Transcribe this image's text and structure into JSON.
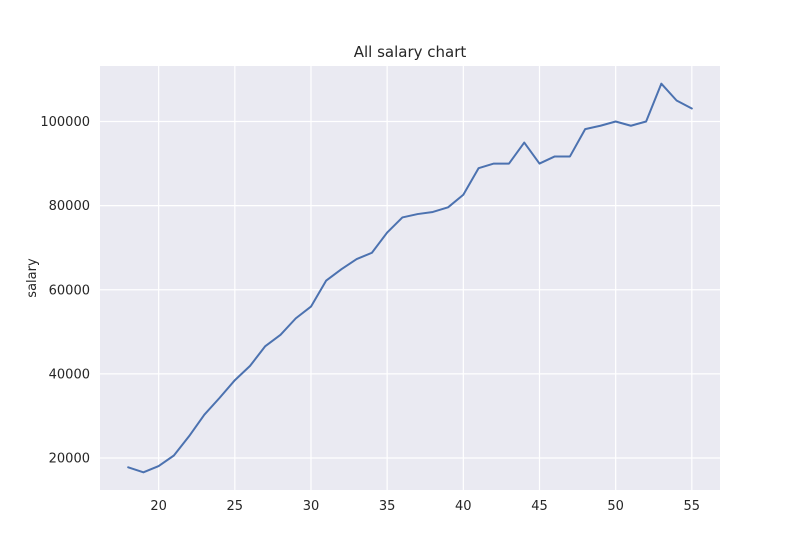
{
  "chart_data": {
    "type": "line",
    "title": "All salary chart",
    "xlabel": "",
    "ylabel": "salary",
    "xlim": [
      16.15,
      56.85
    ],
    "ylim": [
      12400,
      113200
    ],
    "grid": true,
    "x_ticks": [
      20,
      25,
      30,
      35,
      40,
      45,
      50,
      55
    ],
    "y_ticks": [
      20000,
      40000,
      60000,
      80000,
      100000
    ],
    "series": [
      {
        "color": "#4c72b0",
        "x": [
          18,
          19,
          20,
          21,
          22,
          23,
          24,
          25,
          26,
          27,
          28,
          29,
          30,
          31,
          32,
          33,
          34,
          35,
          36,
          37,
          38,
          39,
          40,
          41,
          42,
          43,
          44,
          45,
          46,
          47,
          48,
          49,
          50,
          51,
          52,
          53,
          54,
          55
        ],
        "y": [
          17800,
          16600,
          18100,
          20600,
          25200,
          30300,
          34300,
          38500,
          41900,
          46600,
          49300,
          53200,
          56000,
          62200,
          64900,
          67300,
          68800,
          73600,
          77200,
          78000,
          78500,
          79600,
          82600,
          88900,
          90000,
          90000,
          95000,
          90000,
          91700,
          91700,
          98200,
          99000,
          100000,
          99000,
          100000,
          109000,
          105000,
          103100
        ]
      }
    ]
  },
  "colors": {
    "plot_background": "#eaeaf2",
    "grid": "#ffffff",
    "line": "#4c72b0"
  }
}
